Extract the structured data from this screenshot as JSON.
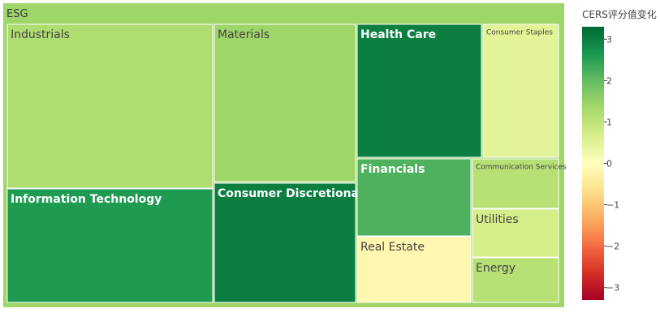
{
  "chart_data": {
    "type": "treemap",
    "root": {
      "label": "ESG",
      "value": 1.4
    },
    "nodes": [
      {
        "label": "Industrials",
        "value": 1.2
      },
      {
        "label": "Information Technology",
        "value": 2.6
      },
      {
        "label": "Materials",
        "value": 1.4
      },
      {
        "label": "Consumer Discretionary",
        "value": 3.0
      },
      {
        "label": "Health Care",
        "value": 3.0
      },
      {
        "label": "Consumer Staples",
        "value": 0.5
      },
      {
        "label": "Financials",
        "value": 2.2
      },
      {
        "label": "Communication Services",
        "value": 1.1
      },
      {
        "label": "Utilities",
        "value": 0.7
      },
      {
        "label": "Real Estate",
        "value": -0.2
      },
      {
        "label": "Energy",
        "value": 1.1
      }
    ],
    "colorbar": {
      "title": "CERS评分值变化",
      "range": [
        -3.3,
        3.3
      ],
      "ticks": [
        -3,
        -2,
        -1,
        0,
        1,
        2,
        3
      ],
      "tick_labels": [
        "−3",
        "−2",
        "−1",
        "0",
        "1",
        "2",
        "3"
      ],
      "colorscale": "RdYlGn"
    }
  }
}
